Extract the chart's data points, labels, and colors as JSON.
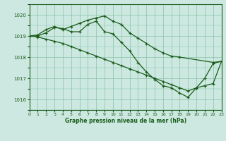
{
  "title": "Graphe pression niveau de la mer (hPa)",
  "background_color": "#cce8e0",
  "line_color": "#1a5c1a",
  "grid_color": "#88c4a8",
  "xlim": [
    0,
    23
  ],
  "ylim": [
    1015.5,
    1020.5
  ],
  "yticks": [
    1016,
    1017,
    1018,
    1019,
    1020
  ],
  "xticks": [
    0,
    1,
    2,
    3,
    4,
    5,
    6,
    7,
    8,
    9,
    10,
    11,
    12,
    13,
    14,
    15,
    16,
    17,
    18,
    19,
    20,
    21,
    22,
    23
  ],
  "series": [
    {
      "x": [
        0,
        1,
        2,
        3,
        4,
        5,
        6,
        7,
        8,
        9,
        10,
        11,
        12,
        13,
        14,
        15,
        16,
        17,
        18,
        22,
        23
      ],
      "y": [
        1019.0,
        1019.05,
        1019.3,
        1019.45,
        1019.3,
        1019.45,
        1019.6,
        1019.75,
        1019.85,
        1019.95,
        1019.7,
        1019.55,
        1019.15,
        1018.9,
        1018.65,
        1018.4,
        1018.2,
        1018.05,
        1018.0,
        1017.75,
        1017.8
      ]
    },
    {
      "x": [
        0,
        1,
        2,
        3,
        4,
        5,
        6,
        7,
        8,
        9,
        10,
        11,
        12,
        13,
        14,
        15,
        16,
        17,
        18,
        19,
        20,
        21,
        22,
        23
      ],
      "y": [
        1019.0,
        1019.0,
        1019.15,
        1019.4,
        1019.35,
        1019.2,
        1019.2,
        1019.55,
        1019.7,
        1019.2,
        1019.1,
        1018.7,
        1018.3,
        1017.75,
        1017.3,
        1016.95,
        1016.65,
        1016.55,
        1016.3,
        1016.1,
        1016.55,
        1017.0,
        1017.7,
        1017.8
      ]
    },
    {
      "x": [
        0,
        1,
        2,
        3,
        4,
        5,
        6,
        7,
        8,
        9,
        10,
        11,
        12,
        13,
        14,
        15,
        16,
        17,
        18,
        19,
        20,
        21,
        22,
        23
      ],
      "y": [
        1019.0,
        1018.95,
        1018.85,
        1018.75,
        1018.65,
        1018.5,
        1018.35,
        1018.2,
        1018.05,
        1017.9,
        1017.75,
        1017.6,
        1017.45,
        1017.3,
        1017.15,
        1017.0,
        1016.85,
        1016.7,
        1016.55,
        1016.4,
        1016.55,
        1016.65,
        1016.75,
        1017.8
      ]
    }
  ]
}
